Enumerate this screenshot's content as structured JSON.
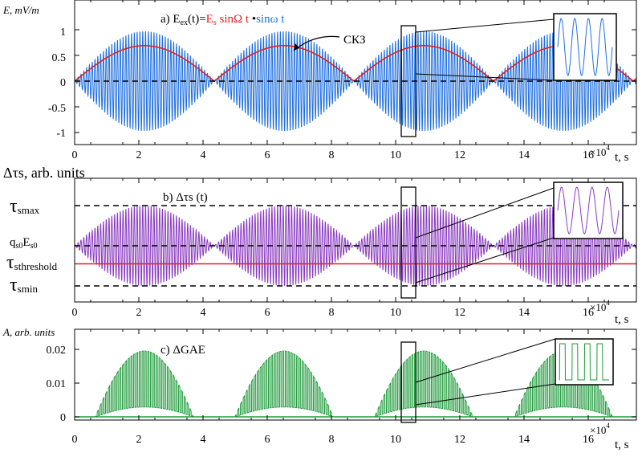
{
  "colors": {
    "blue": "#1f6fe0",
    "red": "#e02020",
    "purple": "#8a3bc0",
    "green": "#1e9a3a",
    "dash": "#000000"
  },
  "chart_data": [
    {
      "id": "a",
      "type": "line",
      "ylabel": "E, mV/m",
      "xlabel": "t, s",
      "x_multiplier": "×10",
      "x_multiplier_exp": "4",
      "panel_title": {
        "prefix": "a) E",
        "sub": "ex",
        "mid": "(t)=",
        "red": "E",
        "red_sub": "s",
        "red_rest": " sinΩ t",
        "dot": " •",
        "blue": "sinω t"
      },
      "annotation": "СКЗ",
      "xlim": [
        0,
        17.5
      ],
      "ylim": [
        -1.2,
        1.2
      ],
      "xticks": [
        "0",
        "2",
        "4",
        "6",
        "8",
        "10",
        "12",
        "14",
        "16"
      ],
      "yticks": [
        "1",
        "0.5",
        "0",
        "-0.5",
        "-1"
      ],
      "ytick_values": [
        1,
        0.5,
        0,
        -0.5,
        -1
      ],
      "series": [
        {
          "kind": "carrier",
          "color_key": "blue",
          "envelope_amplitude": 0.97,
          "envelope_zeros": [
            0,
            4.35,
            8.7,
            13.05,
            17.4
          ]
        },
        {
          "kind": "rms",
          "color_key": "red",
          "peak": 0.69
        },
        {
          "kind": "zero_line",
          "y": 0
        }
      ]
    },
    {
      "id": "b",
      "type": "line",
      "ylabel": "Δτs, arb. units",
      "xlabel": "t, s",
      "x_multiplier": "×10",
      "x_multiplier_exp": "4",
      "panel_title": "b) Δτs (t)",
      "xlim": [
        0,
        17.5
      ],
      "levels": [
        {
          "label": "τ",
          "sub": "smax",
          "value": 1.0,
          "style": "dashed"
        },
        {
          "label": "q",
          "sub": "s0",
          "label2": "E",
          "sub2": "s0",
          "value": 0.0,
          "style": "dashed"
        },
        {
          "label": "τ",
          "sub": "sthreshold",
          "value": -0.45,
          "style": "red"
        },
        {
          "label": "τ",
          "sub": "smin",
          "value": -1.0,
          "style": "dashed"
        }
      ],
      "xticks": [
        "0",
        "2",
        "4",
        "6",
        "8",
        "10",
        "12",
        "14",
        "16"
      ],
      "series": [
        {
          "kind": "carrier",
          "color_key": "purple",
          "envelope_amplitude": 1.0
        }
      ]
    },
    {
      "id": "c",
      "type": "line",
      "ylabel": "A, arb. units",
      "xlabel": "t, s",
      "x_multiplier": "×10",
      "x_multiplier_exp": "4",
      "panel_title": "c) ΔGAE",
      "xlim": [
        0,
        17.5
      ],
      "ylim": [
        0,
        0.025
      ],
      "yticks": [
        "0.02",
        "0.01",
        "0"
      ],
      "ytick_values": [
        0.02,
        0.01,
        0
      ],
      "xticks": [
        "0",
        "2",
        "4",
        "6",
        "8",
        "10",
        "12",
        "14",
        "16"
      ],
      "series": [
        {
          "kind": "carrier",
          "color_key": "green",
          "peak": 0.0195
        }
      ]
    }
  ]
}
